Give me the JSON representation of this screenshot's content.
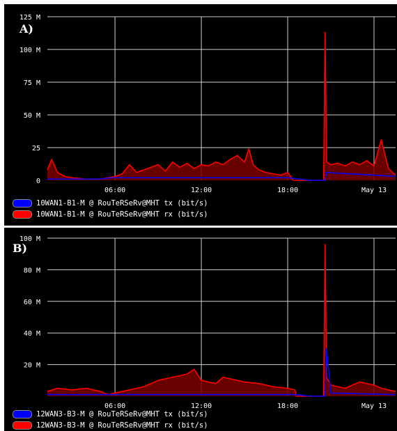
{
  "chart_data": [
    {
      "panel_label": "A)",
      "type": "area",
      "ylim": [
        0,
        125
      ],
      "y_unit": "M",
      "yticks": [
        {
          "value": 125,
          "label": "125 M"
        },
        {
          "value": 100,
          "label": "100 M"
        },
        {
          "value": 75,
          "label": "75 M"
        },
        {
          "value": 50,
          "label": "50 M"
        },
        {
          "value": 25,
          "label": "25"
        },
        {
          "value": 0,
          "label": "0"
        }
      ],
      "xlim": [
        1.3,
        25.5
      ],
      "xticks": [
        {
          "value": 6,
          "label": "06:00"
        },
        {
          "value": 12,
          "label": "12:00"
        },
        {
          "value": 18,
          "label": "18:00"
        },
        {
          "value": 24,
          "label": "May 13"
        }
      ],
      "grid": true,
      "legend_position": "bottom-left",
      "series": [
        {
          "name": "10WAN1-B1-M @ RouTeRSeRv@MHT tx (bit/s)",
          "color": "#0000ff",
          "x": [
            1.3,
            5.0,
            5.8,
            10.0,
            18.0,
            19.6,
            20.6,
            20.7,
            25.5
          ],
          "y": [
            1,
            1,
            2,
            2,
            2,
            0,
            0,
            6,
            3
          ]
        },
        {
          "name": "10WAN1-B1-M @ RouTeRSeRv@MHT rx (bit/s)",
          "color": "#ff0000",
          "x": [
            1.3,
            1.6,
            2.0,
            2.5,
            3.0,
            4.0,
            5.0,
            5.5,
            6.0,
            6.5,
            7.0,
            7.5,
            8.0,
            8.5,
            9.0,
            9.5,
            10.0,
            10.5,
            11.0,
            11.5,
            12.0,
            12.5,
            13.0,
            13.5,
            14.0,
            14.5,
            15.0,
            15.3,
            15.6,
            16.0,
            16.5,
            17.0,
            17.5,
            18.0,
            18.2,
            18.4,
            19.6,
            20.5,
            20.6,
            20.7,
            21.0,
            21.5,
            22.0,
            22.5,
            23.0,
            23.5,
            24.0,
            24.5,
            25.0,
            25.5
          ],
          "y": [
            8,
            16,
            6,
            3,
            2,
            1,
            1,
            2,
            3,
            5,
            12,
            6,
            8,
            10,
            12,
            7,
            14,
            10,
            13,
            9,
            12,
            11,
            14,
            12,
            16,
            19,
            14,
            24,
            12,
            8,
            6,
            5,
            4,
            6,
            3,
            0,
            0,
            0,
            113,
            14,
            12,
            13,
            11,
            14,
            12,
            15,
            11,
            31,
            9,
            4
          ]
        }
      ]
    },
    {
      "panel_label": "B)",
      "type": "area",
      "ylim": [
        0,
        100
      ],
      "y_unit": "M",
      "yticks": [
        {
          "value": 100,
          "label": "100 M"
        },
        {
          "value": 80,
          "label": "80 M"
        },
        {
          "value": 60,
          "label": "60 M"
        },
        {
          "value": 40,
          "label": "40 M"
        },
        {
          "value": 20,
          "label": "20 M"
        }
      ],
      "xlim": [
        1.3,
        25.5
      ],
      "xticks": [
        {
          "value": 6,
          "label": "06:00"
        },
        {
          "value": 12,
          "label": "12:00"
        },
        {
          "value": 18,
          "label": "18:00"
        },
        {
          "value": 24,
          "label": "May 13"
        }
      ],
      "grid": true,
      "legend_position": "bottom-left",
      "series": [
        {
          "name": "12WAN3-B3-M @ RouTeRSeRv@MHT tx (bit/s)",
          "color": "#0000ff",
          "x": [
            1.3,
            18.5,
            19.6,
            20.6,
            20.7,
            21.0,
            25.5
          ],
          "y": [
            1,
            1,
            0,
            0,
            30,
            2,
            1
          ]
        },
        {
          "name": "12WAN3-B3-M @ RouTeRSeRv@MHT rx (bit/s)",
          "color": "#ff0000",
          "x": [
            1.3,
            2.0,
            3.0,
            4.0,
            5.0,
            5.5,
            6.0,
            7.0,
            8.0,
            9.0,
            10.0,
            11.0,
            11.5,
            12.0,
            13.0,
            13.5,
            14.0,
            15.0,
            16.0,
            17.0,
            18.0,
            18.5,
            18.6,
            19.6,
            20.5,
            20.6,
            20.7,
            21.0,
            21.5,
            22.0,
            23.0,
            24.0,
            24.5,
            25.0,
            25.5
          ],
          "y": [
            3,
            5,
            4,
            5,
            3,
            1,
            2,
            4,
            6,
            10,
            12,
            14,
            17,
            10,
            8,
            12,
            11,
            9,
            8,
            6,
            5,
            4,
            0,
            0,
            0,
            96,
            12,
            7,
            6,
            5,
            9,
            7,
            5,
            4,
            3
          ]
        }
      ]
    }
  ]
}
